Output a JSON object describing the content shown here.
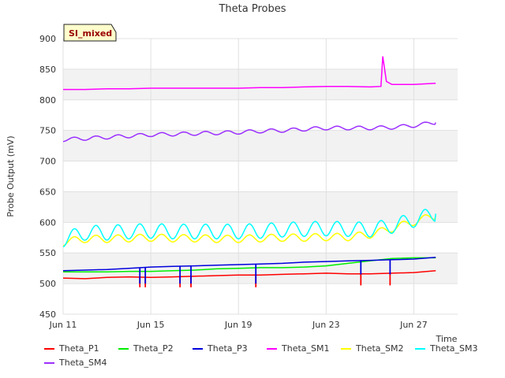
{
  "chart_data": {
    "type": "line",
    "title": "Theta Probes",
    "xlabel": "Time",
    "ylabel": "Probe Output (mV)",
    "ylim": [
      450,
      900
    ],
    "yticks": [
      450,
      500,
      550,
      600,
      650,
      700,
      750,
      800,
      850,
      900
    ],
    "xlim": [
      "2024-06-11",
      "2024-06-29"
    ],
    "xticks": [
      {
        "date": "2024-06-11",
        "label": "Jun 11"
      },
      {
        "date": "2024-06-15",
        "label": "Jun 15"
      },
      {
        "date": "2024-06-19",
        "label": "Jun 19"
      },
      {
        "date": "2024-06-23",
        "label": "Jun 23"
      },
      {
        "date": "2024-06-27",
        "label": "Jun 27"
      }
    ],
    "grid": true,
    "banded_background": true,
    "badge": "SI_mixed",
    "legend_position": "bottom",
    "series": [
      {
        "name": "Theta_P1",
        "color": "#ff0000",
        "x": [
          "2024-06-11",
          "2024-06-12",
          "2024-06-13",
          "2024-06-14",
          "2024-06-15",
          "2024-06-16",
          "2024-06-17",
          "2024-06-18",
          "2024-06-19",
          "2024-06-20",
          "2024-06-21",
          "2024-06-22",
          "2024-06-23",
          "2024-06-24",
          "2024-06-25",
          "2024-06-26",
          "2024-06-27",
          "2024-06-28"
        ],
        "values": [
          509,
          508,
          510,
          511,
          510,
          511,
          512,
          513,
          514,
          514,
          515,
          516,
          517,
          516,
          516,
          517,
          518,
          521
        ],
        "dips": [
          {
            "x": "2024-06-14T12:00",
            "y": 494
          },
          {
            "x": "2024-06-14T18:00",
            "y": 494
          },
          {
            "x": "2024-06-16T08:00",
            "y": 494
          },
          {
            "x": "2024-06-16T20:00",
            "y": 494
          },
          {
            "x": "2024-06-19T19:00",
            "y": 494
          },
          {
            "x": "2024-06-24T14:00",
            "y": 497
          },
          {
            "x": "2024-06-25T22:00",
            "y": 497
          }
        ]
      },
      {
        "name": "Theta_P2",
        "color": "#00ee00",
        "x": [
          "2024-06-11",
          "2024-06-12",
          "2024-06-13",
          "2024-06-14",
          "2024-06-15",
          "2024-06-16",
          "2024-06-17",
          "2024-06-18",
          "2024-06-19",
          "2024-06-20",
          "2024-06-21",
          "2024-06-22",
          "2024-06-23",
          "2024-06-24",
          "2024-06-25",
          "2024-06-26",
          "2024-06-27",
          "2024-06-28"
        ],
        "values": [
          519,
          519,
          519,
          520,
          520,
          521,
          522,
          524,
          525,
          526,
          526,
          527,
          529,
          533,
          537,
          541,
          542,
          542
        ]
      },
      {
        "name": "Theta_P3",
        "color": "#0000dd",
        "x": [
          "2024-06-11",
          "2024-06-12",
          "2024-06-13",
          "2024-06-14",
          "2024-06-15",
          "2024-06-16",
          "2024-06-17",
          "2024-06-18",
          "2024-06-19",
          "2024-06-20",
          "2024-06-21",
          "2024-06-22",
          "2024-06-23",
          "2024-06-24",
          "2024-06-25",
          "2024-06-26",
          "2024-06-27",
          "2024-06-28"
        ],
        "values": [
          521,
          522,
          523,
          525,
          527,
          528,
          529,
          530,
          531,
          532,
          533,
          535,
          536,
          537,
          538,
          539,
          540,
          543
        ],
        "dips": [
          {
            "x": "2024-06-14T12:00",
            "y": 500
          },
          {
            "x": "2024-06-14T18:00",
            "y": 500
          },
          {
            "x": "2024-06-16T08:00",
            "y": 500
          },
          {
            "x": "2024-06-16T20:00",
            "y": 500
          },
          {
            "x": "2024-06-19T19:00",
            "y": 500
          },
          {
            "x": "2024-06-24T14:00",
            "y": 515
          },
          {
            "x": "2024-06-25T22:00",
            "y": 515
          }
        ]
      },
      {
        "name": "Theta_SM1",
        "color": "#ff00ff",
        "x": [
          "2024-06-11",
          "2024-06-12",
          "2024-06-13",
          "2024-06-14",
          "2024-06-15",
          "2024-06-16",
          "2024-06-17",
          "2024-06-18",
          "2024-06-19",
          "2024-06-20",
          "2024-06-21",
          "2024-06-22",
          "2024-06-23",
          "2024-06-24",
          "2024-06-25",
          "2024-06-25T12:00",
          "2024-06-25T14:00",
          "2024-06-25T18:00",
          "2024-06-26",
          "2024-06-27",
          "2024-06-28"
        ],
        "values": [
          817,
          817,
          818,
          818,
          819,
          819,
          819,
          819,
          819,
          820,
          820,
          821,
          822,
          822,
          821,
          822,
          871,
          830,
          825,
          825,
          827
        ]
      },
      {
        "name": "Theta_SM2",
        "color": "#ffff00",
        "x": [
          "2024-06-11",
          "2024-06-12",
          "2024-06-13",
          "2024-06-14",
          "2024-06-15",
          "2024-06-16",
          "2024-06-17",
          "2024-06-18",
          "2024-06-19",
          "2024-06-20",
          "2024-06-21",
          "2024-06-22",
          "2024-06-23",
          "2024-06-24",
          "2024-06-25",
          "2024-06-26",
          "2024-06-27",
          "2024-06-28"
        ],
        "values": [
          568,
          573,
          573,
          574,
          575,
          574,
          574,
          573,
          573,
          574,
          575,
          575,
          576,
          576,
          580,
          590,
          601,
          611
        ],
        "daily_amplitude": 6
      },
      {
        "name": "Theta_SM3",
        "color": "#00ffff",
        "x": [
          "2024-06-11",
          "2024-06-12",
          "2024-06-13",
          "2024-06-14",
          "2024-06-15",
          "2024-06-16",
          "2024-06-17",
          "2024-06-18",
          "2024-06-19",
          "2024-06-20",
          "2024-06-21",
          "2024-06-22",
          "2024-06-23",
          "2024-06-24",
          "2024-06-25",
          "2024-06-26",
          "2024-06-27",
          "2024-06-28"
        ],
        "values": [
          572,
          583,
          583,
          585,
          586,
          585,
          585,
          585,
          585,
          586,
          588,
          589,
          590,
          589,
          588,
          594,
          604,
          614
        ],
        "daily_amplitude": 12
      },
      {
        "name": "Theta_SM4",
        "color": "#9b30ff",
        "x": [
          "2024-06-11",
          "2024-06-12",
          "2024-06-13",
          "2024-06-14",
          "2024-06-15",
          "2024-06-16",
          "2024-06-17",
          "2024-06-18",
          "2024-06-19",
          "2024-06-20",
          "2024-06-21",
          "2024-06-22",
          "2024-06-23",
          "2024-06-24",
          "2024-06-25",
          "2024-06-26",
          "2024-06-27",
          "2024-06-28"
        ],
        "values": [
          735,
          737,
          739,
          741,
          743,
          744,
          745,
          746,
          747,
          749,
          750,
          752,
          754,
          754,
          754,
          755,
          758,
          763
        ],
        "daily_amplitude": 3
      }
    ]
  }
}
